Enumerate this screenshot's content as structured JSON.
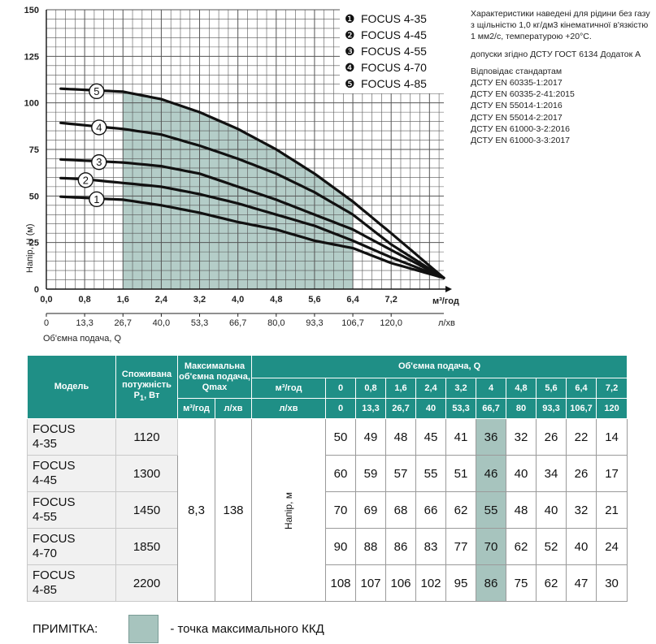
{
  "chart_data": {
    "type": "line",
    "x_unit_label": "м³/год",
    "x2_unit_label": "л/хв",
    "xlabel": "Об'ємна подача, Q",
    "ylabel": "Напір, Н (м)",
    "x_ticks": [
      "0,0",
      "0,8",
      "1,6",
      "2,4",
      "3,2",
      "4,0",
      "4,8",
      "5,6",
      "6,4",
      "7,2"
    ],
    "x2_ticks": [
      "0",
      "13,3",
      "26,7",
      "40,0",
      "53,3",
      "66,7",
      "80,0",
      "93,3",
      "106,7",
      "120,0"
    ],
    "y_ticks": [
      "0",
      "25",
      "50",
      "75",
      "100",
      "125",
      "150"
    ],
    "xlim": [
      0,
      8.3
    ],
    "ylim": [
      0,
      150
    ],
    "shaded_region": {
      "x_from": 1.6,
      "x_to": 6.4,
      "label": "точка максимального ККД"
    },
    "series": [
      {
        "name": "FOCUS 4-35",
        "marker": "1",
        "x": [
          0,
          0.8,
          1.6,
          2.4,
          3.2,
          4.0,
          4.8,
          5.6,
          6.4,
          7.2,
          8.3
        ],
        "values": [
          50,
          49,
          48,
          45,
          41,
          36,
          32,
          26,
          22,
          14,
          6
        ]
      },
      {
        "name": "FOCUS 4-45",
        "marker": "2",
        "x": [
          0,
          0.8,
          1.6,
          2.4,
          3.2,
          4.0,
          4.8,
          5.6,
          6.4,
          7.2,
          8.3
        ],
        "values": [
          60,
          59,
          57,
          55,
          51,
          46,
          40,
          34,
          26,
          17,
          6
        ]
      },
      {
        "name": "FOCUS 4-55",
        "marker": "3",
        "x": [
          0,
          0.8,
          1.6,
          2.4,
          3.2,
          4.0,
          4.8,
          5.6,
          6.4,
          7.2,
          8.3
        ],
        "values": [
          70,
          69,
          68,
          66,
          62,
          55,
          48,
          40,
          32,
          21,
          6
        ]
      },
      {
        "name": "FOCUS 4-70",
        "marker": "4",
        "x": [
          0,
          0.8,
          1.6,
          2.4,
          3.2,
          4.0,
          4.8,
          5.6,
          6.4,
          7.2,
          8.3
        ],
        "values": [
          90,
          88,
          86,
          83,
          77,
          70,
          62,
          52,
          40,
          24,
          6
        ]
      },
      {
        "name": "FOCUS 4-85",
        "marker": "5",
        "x": [
          0,
          0.8,
          1.6,
          2.4,
          3.2,
          4.0,
          4.8,
          5.6,
          6.4,
          7.2,
          8.3
        ],
        "values": [
          108,
          107,
          106,
          102,
          95,
          86,
          75,
          62,
          47,
          30,
          6
        ]
      }
    ],
    "legend": [
      "FOCUS 4-35",
      "FOCUS 4-45",
      "FOCUS 4-55",
      "FOCUS 4-70",
      "FOCUS 4-85"
    ],
    "legend_markers": [
      "❶",
      "❷",
      "❸",
      "❹",
      "❺"
    ],
    "grid": true,
    "legend_position": "top-right",
    "colors": {
      "line": "#111111",
      "shade": "#a7c4be",
      "grid": "#555555"
    }
  },
  "notes": {
    "characteristics": "Характеристики наведені для рідини без газу з щільністю 1,0 кг/дм3 кінематичної в'язкістю 1 мм2/с, температурою +20°С.",
    "tolerances": "допуски згідно ДСТУ ГОСТ 6134 Додаток А",
    "standards_title": "Відповідає стандартам",
    "standards": [
      "ДСТУ EN 60335-1:2017",
      "ДСТУ EN 60335-2-41:2015",
      "ДСТУ EN 55014-1:2016",
      "ДСТУ EN 55014-2:2017",
      "ДСТУ EN 61000-3-2:2016",
      "ДСТУ EN 61000-3-3:2017"
    ]
  },
  "table": {
    "headers": {
      "model": "Модель",
      "power": "Споживана потужність",
      "power_sym": "P",
      "power_sub": "1",
      "power_unit": ", Вт",
      "qmax": "Максимальна об'ємна подача, Qmax",
      "qmax_unit1": "м³/год",
      "qmax_unit2": "л/хв",
      "flow": "Об'ємна подача, Q",
      "flow_unit1": "м³/год",
      "flow_unit2": "л/хв",
      "head": "Напір, м"
    },
    "flow_m3h": [
      "0",
      "0,8",
      "1,6",
      "2,4",
      "3,2",
      "4",
      "4,8",
      "5,6",
      "6,4",
      "7,2"
    ],
    "flow_lmin": [
      "0",
      "13,3",
      "26,7",
      "40",
      "53,3",
      "66,7",
      "80",
      "93,3",
      "106,7",
      "120"
    ],
    "highlight_col_index": 5,
    "qmax_m3h": "8,3",
    "qmax_lmin": "138",
    "rows": [
      {
        "model_l1": "FOCUS",
        "model_l2": "4-35",
        "power": "1120",
        "head": [
          "50",
          "49",
          "48",
          "45",
          "41",
          "36",
          "32",
          "26",
          "22",
          "14"
        ]
      },
      {
        "model_l1": "FOCUS",
        "model_l2": "4-45",
        "power": "1300",
        "head": [
          "60",
          "59",
          "57",
          "55",
          "51",
          "46",
          "40",
          "34",
          "26",
          "17"
        ]
      },
      {
        "model_l1": "FOCUS",
        "model_l2": "4-55",
        "power": "1450",
        "head": [
          "70",
          "69",
          "68",
          "66",
          "62",
          "55",
          "48",
          "40",
          "32",
          "21"
        ]
      },
      {
        "model_l1": "FOCUS",
        "model_l2": "4-70",
        "power": "1850",
        "head": [
          "90",
          "88",
          "86",
          "83",
          "77",
          "70",
          "62",
          "52",
          "40",
          "24"
        ]
      },
      {
        "model_l1": "FOCUS",
        "model_l2": "4-85",
        "power": "2200",
        "head": [
          "108",
          "107",
          "106",
          "102",
          "95",
          "86",
          "75",
          "62",
          "47",
          "30"
        ]
      }
    ]
  },
  "footnote": {
    "label": "ПРИМІТКА:",
    "text": "- точка максимального ККД"
  }
}
